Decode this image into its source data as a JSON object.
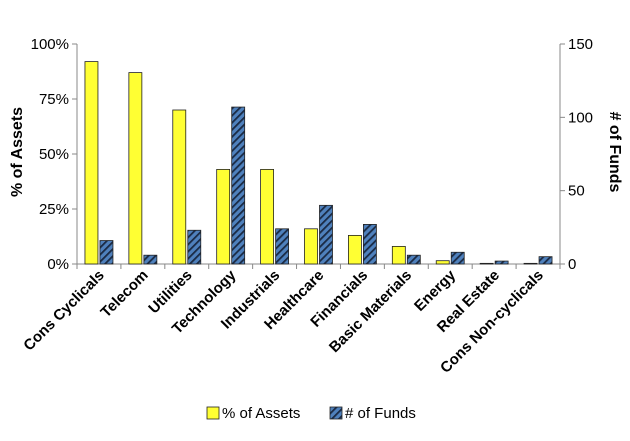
{
  "chart_data": {
    "type": "bar",
    "categories": [
      "Cons Cyclicals",
      "Telecom",
      "Utilities",
      "Technology",
      "Industrials",
      "Healthcare",
      "Financials",
      "Basic Materials",
      "Energy",
      "Real Estate",
      "Cons Non-cyclicals"
    ],
    "series": [
      {
        "name": "% of Assets",
        "axis": "left",
        "color": "#ffff33",
        "values": [
          92,
          87,
          70,
          43,
          43,
          16,
          13,
          8,
          1.5,
          0.3,
          0.3
        ]
      },
      {
        "name": "# of Funds",
        "axis": "right",
        "color": "#4f81bd",
        "pattern": "diagonal-stripes",
        "values": [
          16,
          6,
          23,
          107,
          24,
          40,
          27,
          6,
          8,
          2,
          5
        ]
      }
    ],
    "ylabel": "% of Assets",
    "ylabel_right": "# of Funds",
    "ylim": [
      0,
      100
    ],
    "ylim_right": [
      0,
      150
    ],
    "yticks": [
      "0%",
      "25%",
      "50%",
      "75%",
      "100%"
    ],
    "yticks_right": [
      "0",
      "50",
      "100",
      "150"
    ],
    "legend": "bottom",
    "grid": false
  }
}
